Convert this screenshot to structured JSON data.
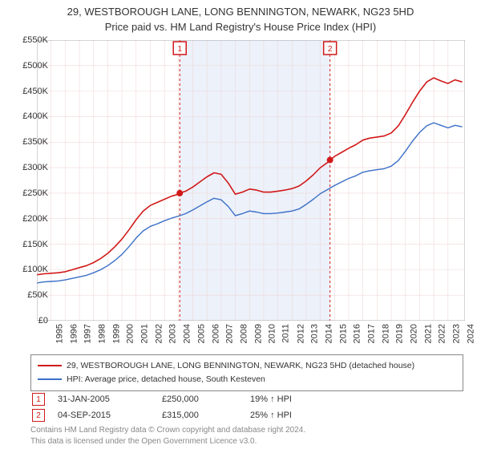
{
  "title_line1": "29, WESTBOROUGH LANE, LONG BENNINGTON, NEWARK, NG23 5HD",
  "title_line2": "Price paid vs. HM Land Registry's House Price Index (HPI)",
  "chart": {
    "type": "line",
    "background_color": "#ffffff",
    "grid_color": "#f0d8d8",
    "grid_width": 0.6,
    "x_years": [
      1995,
      1996,
      1997,
      1998,
      1999,
      2000,
      2001,
      2002,
      2003,
      2004,
      2005,
      2006,
      2007,
      2008,
      2009,
      2010,
      2011,
      2012,
      2013,
      2014,
      2015,
      2016,
      2017,
      2018,
      2019,
      2020,
      2021,
      2022,
      2023,
      2024
    ],
    "x_min": 1995,
    "x_max": 2025.2,
    "y_label_prefix": "£",
    "y_label_suffix": "K",
    "y_ticks": [
      0,
      50,
      100,
      150,
      200,
      250,
      300,
      350,
      400,
      450,
      500,
      550
    ],
    "y_min": 0,
    "y_max": 550,
    "shaded_band": {
      "from_year": 2005.08,
      "to_year": 2015.68,
      "fill": "#eaf0fa",
      "opacity": 0.9
    },
    "series": [
      {
        "name": "29, WESTBOROUGH LANE, LONG BENNINGTON, NEWARK, NG23 5HD (detached house)",
        "color": "#d11919",
        "line_width": 1.6,
        "points": [
          [
            1995,
            90
          ],
          [
            1995.5,
            92
          ],
          [
            1996,
            93
          ],
          [
            1996.5,
            94
          ],
          [
            1997,
            96
          ],
          [
            1997.5,
            100
          ],
          [
            1998,
            104
          ],
          [
            1998.5,
            108
          ],
          [
            1999,
            114
          ],
          [
            1999.5,
            122
          ],
          [
            2000,
            132
          ],
          [
            2000.5,
            145
          ],
          [
            2001,
            160
          ],
          [
            2001.5,
            178
          ],
          [
            2002,
            198
          ],
          [
            2002.5,
            215
          ],
          [
            2003,
            226
          ],
          [
            2003.5,
            232
          ],
          [
            2004,
            238
          ],
          [
            2004.5,
            244
          ],
          [
            2005,
            248
          ],
          [
            2005.08,
            250
          ],
          [
            2005.5,
            254
          ],
          [
            2006,
            262
          ],
          [
            2006.5,
            272
          ],
          [
            2007,
            282
          ],
          [
            2007.5,
            290
          ],
          [
            2008,
            287
          ],
          [
            2008.5,
            270
          ],
          [
            2009,
            248
          ],
          [
            2009.5,
            252
          ],
          [
            2010,
            258
          ],
          [
            2010.5,
            256
          ],
          [
            2011,
            252
          ],
          [
            2011.5,
            252
          ],
          [
            2012,
            254
          ],
          [
            2012.5,
            256
          ],
          [
            2013,
            259
          ],
          [
            2013.5,
            264
          ],
          [
            2014,
            274
          ],
          [
            2014.5,
            286
          ],
          [
            2015,
            300
          ],
          [
            2015.5,
            310
          ],
          [
            2015.68,
            315
          ],
          [
            2016,
            322
          ],
          [
            2016.5,
            330
          ],
          [
            2017,
            338
          ],
          [
            2017.5,
            345
          ],
          [
            2018,
            354
          ],
          [
            2018.5,
            358
          ],
          [
            2019,
            360
          ],
          [
            2019.5,
            362
          ],
          [
            2020,
            368
          ],
          [
            2020.5,
            382
          ],
          [
            2021,
            404
          ],
          [
            2021.5,
            428
          ],
          [
            2022,
            450
          ],
          [
            2022.5,
            468
          ],
          [
            2023,
            476
          ],
          [
            2023.5,
            470
          ],
          [
            2024,
            465
          ],
          [
            2024.5,
            472
          ],
          [
            2025,
            468
          ]
        ]
      },
      {
        "name": "HPI: Average price, detached house, South Kesteven",
        "color": "#3a6fc7",
        "line_width": 1.4,
        "points": [
          [
            1995,
            74
          ],
          [
            1995.5,
            76
          ],
          [
            1996,
            77
          ],
          [
            1996.5,
            78
          ],
          [
            1997,
            80
          ],
          [
            1997.5,
            83
          ],
          [
            1998,
            86
          ],
          [
            1998.5,
            89
          ],
          [
            1999,
            94
          ],
          [
            1999.5,
            100
          ],
          [
            2000,
            108
          ],
          [
            2000.5,
            118
          ],
          [
            2001,
            130
          ],
          [
            2001.5,
            145
          ],
          [
            2002,
            162
          ],
          [
            2002.5,
            176
          ],
          [
            2003,
            185
          ],
          [
            2003.5,
            190
          ],
          [
            2004,
            196
          ],
          [
            2004.5,
            201
          ],
          [
            2005,
            205
          ],
          [
            2005.5,
            210
          ],
          [
            2006,
            217
          ],
          [
            2006.5,
            225
          ],
          [
            2007,
            233
          ],
          [
            2007.5,
            240
          ],
          [
            2008,
            237
          ],
          [
            2008.5,
            224
          ],
          [
            2009,
            206
          ],
          [
            2009.5,
            210
          ],
          [
            2010,
            215
          ],
          [
            2010.5,
            213
          ],
          [
            2011,
            210
          ],
          [
            2011.5,
            210
          ],
          [
            2012,
            211
          ],
          [
            2012.5,
            213
          ],
          [
            2013,
            215
          ],
          [
            2013.5,
            219
          ],
          [
            2014,
            228
          ],
          [
            2014.5,
            238
          ],
          [
            2015,
            249
          ],
          [
            2015.5,
            257
          ],
          [
            2016,
            265
          ],
          [
            2016.5,
            272
          ],
          [
            2017,
            279
          ],
          [
            2017.5,
            284
          ],
          [
            2018,
            291
          ],
          [
            2018.5,
            294
          ],
          [
            2019,
            296
          ],
          [
            2019.5,
            298
          ],
          [
            2020,
            303
          ],
          [
            2020.5,
            314
          ],
          [
            2021,
            332
          ],
          [
            2021.5,
            352
          ],
          [
            2022,
            369
          ],
          [
            2022.5,
            382
          ],
          [
            2023,
            388
          ],
          [
            2023.5,
            383
          ],
          [
            2024,
            378
          ],
          [
            2024.5,
            383
          ],
          [
            2025,
            380
          ]
        ]
      }
    ],
    "markers": [
      {
        "id": "1",
        "year": 2005.08,
        "box_color": "#d11919",
        "line_dash": "3,3",
        "point": {
          "y": 250,
          "fill": "#d11919"
        }
      },
      {
        "id": "2",
        "year": 2015.68,
        "box_color": "#d11919",
        "line_dash": "3,3",
        "point": {
          "y": 315,
          "fill": "#d11919"
        }
      }
    ]
  },
  "legend": {
    "border_color": "#888888",
    "items": [
      {
        "color": "#d11919",
        "label": "29, WESTBOROUGH LANE, LONG BENNINGTON, NEWARK, NG23 5HD (detached house)"
      },
      {
        "color": "#3a6fc7",
        "label": "HPI: Average price, detached house, South Kesteven"
      }
    ]
  },
  "events": [
    {
      "id": "1",
      "badge_color": "#d11919",
      "date": "31-JAN-2005",
      "price": "£250,000",
      "delta": "19% ↑ HPI"
    },
    {
      "id": "2",
      "badge_color": "#d11919",
      "date": "04-SEP-2015",
      "price": "£315,000",
      "delta": "25% ↑ HPI"
    }
  ],
  "footer_line1": "Contains HM Land Registry data © Crown copyright and database right 2024.",
  "footer_line2": "This data is licensed under the Open Government Licence v3.0."
}
